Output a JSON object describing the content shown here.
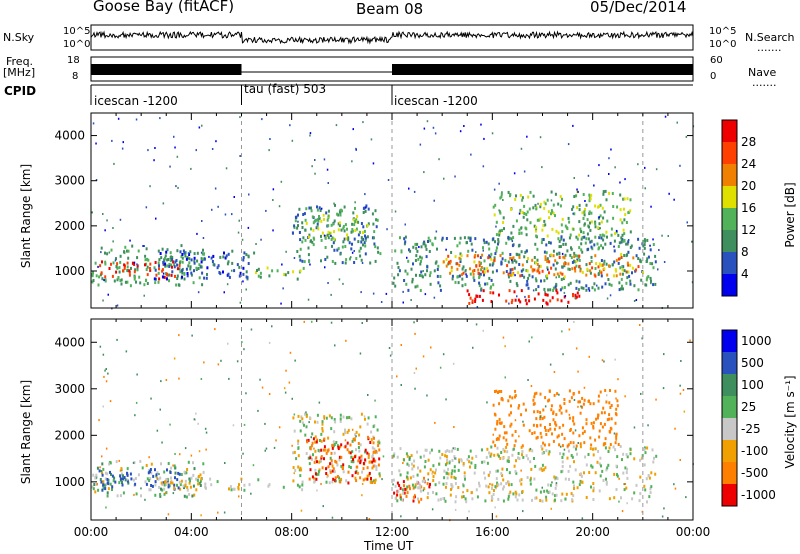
{
  "header": {
    "station": "Goose Bay (fitACF)",
    "beam": "Beam 08",
    "date": "05/Dec/2014"
  },
  "left_labels": {
    "nsky": "N.Sky",
    "freq_top": "Freq.",
    "freq_unit": "[MHz]",
    "cpid": "CPID"
  },
  "right_labels": {
    "nsearch": "N.Search",
    "nave": "Nave",
    "dots": "......."
  },
  "noise_axis": {
    "top": "10^5",
    "bottom": "10^0"
  },
  "freq_axis": {
    "left_ticks": [
      "18",
      "8"
    ],
    "right_ticks": [
      "60",
      "0"
    ]
  },
  "cpid_segments": [
    {
      "label": "icescan -1200",
      "start": "00:00",
      "end": "06:00"
    },
    {
      "label": "tau (fast) 503",
      "start": "06:00",
      "end": "12:00"
    },
    {
      "label": "icescan -1200",
      "start": "12:00",
      "end": "24:00"
    }
  ],
  "colors": {
    "power": [
      "#0000ee",
      "#2a52be",
      "#3e8e5e",
      "#52b25a",
      "#e0e000",
      "#f08000",
      "#ff4000",
      "#ee0000"
    ],
    "velocity": [
      "#0000ee",
      "#2a52be",
      "#3e8e5e",
      "#52b25a",
      "#c8c8c8",
      "#f0a000",
      "#ff8000",
      "#ee0000"
    ]
  },
  "chart_data": [
    {
      "type": "heatmap",
      "name": "power",
      "xlabel": "",
      "ylabel": "Slant Range [km]",
      "xlim": [
        "00:00",
        "24:00"
      ],
      "ylim": [
        180,
        4500
      ],
      "y_ticks": [
        1000,
        2000,
        3000,
        4000
      ],
      "colorbar_label": "Power [dB]",
      "colorbar_ticks": [
        4,
        8,
        12,
        16,
        20,
        24,
        28
      ],
      "colorbar_range": [
        0,
        32
      ],
      "regions": [
        {
          "t0": 0.0,
          "t1": 4.5,
          "r0": 700,
          "r1": 1600,
          "level": 12
        },
        {
          "t0": 0.3,
          "t1": 3.5,
          "r0": 850,
          "r1": 1250,
          "level": 28
        },
        {
          "t0": 2.5,
          "t1": 6.5,
          "r0": 850,
          "r1": 1500,
          "level": 6
        },
        {
          "t0": 6.5,
          "t1": 8.5,
          "r0": 850,
          "r1": 1100,
          "level": 14
        },
        {
          "t0": 8.0,
          "t1": 11.5,
          "r0": 1200,
          "r1": 2500,
          "level": 10
        },
        {
          "t0": 8.5,
          "t1": 11.0,
          "r0": 1700,
          "r1": 2300,
          "level": 16
        },
        {
          "t0": 12.0,
          "t1": 22.5,
          "r0": 600,
          "r1": 1800,
          "level": 10
        },
        {
          "t0": 14.0,
          "t1": 22.0,
          "r0": 900,
          "r1": 1400,
          "level": 22
        },
        {
          "t0": 14.5,
          "t1": 19.5,
          "r0": 300,
          "r1": 600,
          "level": 30
        },
        {
          "t0": 16.0,
          "t1": 21.5,
          "r0": 1800,
          "r1": 2800,
          "level": 14
        }
      ]
    },
    {
      "type": "heatmap",
      "name": "velocity",
      "xlabel": "Time UT",
      "ylabel": "Slant Range [km]",
      "x_ticks": [
        "00:00",
        "04:00",
        "08:00",
        "12:00",
        "16:00",
        "20:00",
        "00:00"
      ],
      "xlim": [
        "00:00",
        "24:00"
      ],
      "ylim": [
        180,
        4500
      ],
      "y_ticks": [
        1000,
        2000,
        3000,
        4000
      ],
      "colorbar_label": "Velocity [m s⁻¹]",
      "colorbar_ticks": [
        "1000",
        "500",
        "100",
        "25",
        "-25",
        "-100",
        "-500",
        "-1000"
      ],
      "regions": [
        {
          "t0": 0.0,
          "t1": 4.5,
          "r0": 700,
          "r1": 1500,
          "v": 25
        },
        {
          "t0": 0.3,
          "t1": 3.5,
          "r0": 850,
          "r1": 1300,
          "v": 500
        },
        {
          "t0": 2.5,
          "t1": 8.5,
          "r0": 850,
          "r1": 1100,
          "v": 0
        },
        {
          "t0": 8.0,
          "t1": 11.5,
          "r0": 1000,
          "r1": 2500,
          "v": 0
        },
        {
          "t0": 8.5,
          "t1": 11.5,
          "r0": 1000,
          "r1": 2000,
          "v": -300
        },
        {
          "t0": 12.0,
          "t1": 13.5,
          "r0": 600,
          "r1": 1200,
          "v": -300
        },
        {
          "t0": 12.0,
          "t1": 22.5,
          "r0": 600,
          "r1": 1800,
          "v": 0
        },
        {
          "t0": 16.0,
          "t1": 21.0,
          "r0": 1800,
          "r1": 3000,
          "v": -200
        }
      ]
    }
  ]
}
